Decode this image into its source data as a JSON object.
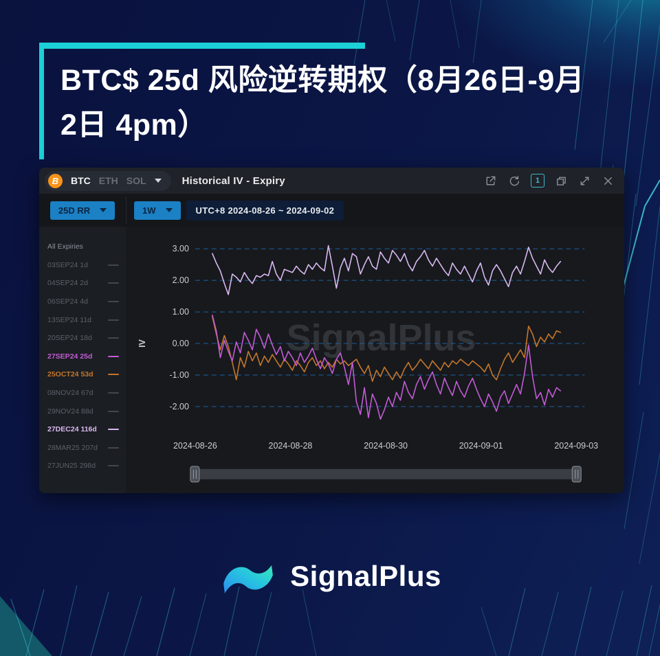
{
  "page": {
    "title": "BTC$ 25d 风险逆转期权（8月26日-9月2日 4pm）"
  },
  "widget": {
    "assets": {
      "btc": "BTC",
      "eth": "ETH",
      "sol": "SOL"
    },
    "title": "Historical IV - Expiry",
    "badge": "1",
    "watermark": "SignalPlus",
    "toolbar": {
      "metric": "25D RR",
      "period": "1W",
      "range": "UTC+8 2024-08-26 ~ 2024-09-02"
    },
    "sidebar": {
      "items": [
        {
          "label": "All Expiries",
          "state": "none"
        },
        {
          "label": "03SEP24 1d",
          "state": "inactive"
        },
        {
          "label": "04SEP24 2d",
          "state": "inactive"
        },
        {
          "label": "06SEP24 4d",
          "state": "inactive"
        },
        {
          "label": "13SEP24 11d",
          "state": "inactive"
        },
        {
          "label": "20SEP24 18d",
          "state": "inactive"
        },
        {
          "label": "27SEP24 25d",
          "state": "active",
          "color": "#c45ad6"
        },
        {
          "label": "25OCT24 53d",
          "state": "active",
          "color": "#c5772a"
        },
        {
          "label": "08NOV24 67d",
          "state": "inactive"
        },
        {
          "label": "29NOV24 88d",
          "state": "inactive"
        },
        {
          "label": "27DEC24 116d",
          "state": "active",
          "color": "#d9b8f0"
        },
        {
          "label": "28MAR25 207d",
          "state": "inactive"
        },
        {
          "label": "27JUN25 298d",
          "state": "inactive"
        }
      ]
    }
  },
  "chart_data": {
    "type": "line",
    "title": "Historical IV - Expiry",
    "ylabel": "IV",
    "grid": true,
    "legend_position": "sidebar-left",
    "ylim": [
      -2.9,
      3.5
    ],
    "yticks": [
      3,
      2,
      1,
      0,
      -1,
      -2
    ],
    "ytick_labels": [
      "3.00",
      "2.00",
      "1.00",
      "0.00",
      "-1.00",
      "-2.00"
    ],
    "x_axis": {
      "labels": [
        "2024-08-26",
        "2024-08-28",
        "2024-08-30",
        "2024-09-01",
        "2024-09-03"
      ],
      "day_positions": [
        0,
        2,
        4,
        6,
        8
      ],
      "range_days": [
        0,
        8
      ]
    },
    "series": [
      {
        "name": "27DEC24 116d",
        "color": "#d9b8f0",
        "x_start": 0.36,
        "x_end": 7.67,
        "values": [
          2.85,
          2.55,
          2.3,
          1.9,
          1.55,
          2.2,
          2.1,
          1.95,
          2.25,
          2.05,
          1.9,
          2.15,
          2.1,
          2.2,
          2.15,
          2.6,
          2.2,
          2.0,
          2.35,
          2.3,
          2.25,
          2.45,
          2.3,
          2.2,
          2.5,
          2.35,
          2.55,
          2.4,
          2.3,
          3.1,
          2.45,
          1.75,
          2.4,
          2.7,
          2.3,
          2.85,
          2.75,
          2.2,
          2.5,
          2.75,
          2.45,
          2.35,
          2.9,
          2.7,
          2.55,
          2.95,
          2.8,
          2.6,
          2.85,
          2.5,
          2.3,
          2.6,
          2.75,
          2.95,
          2.65,
          2.45,
          2.7,
          2.5,
          2.3,
          2.15,
          2.55,
          2.35,
          2.2,
          2.45,
          2.2,
          1.95,
          2.3,
          2.55,
          2.1,
          1.85,
          2.3,
          2.5,
          2.3,
          2.05,
          1.8,
          2.25,
          2.45,
          2.2,
          2.6,
          3.05,
          2.7,
          2.45,
          2.2,
          2.65,
          2.4,
          2.25,
          2.45,
          2.6
        ]
      },
      {
        "name": "25OCT24 53d",
        "color": "#c5772a",
        "x_start": 0.36,
        "x_end": 7.67,
        "values": [
          0.85,
          0.3,
          -0.2,
          0.25,
          -0.1,
          -0.6,
          -1.15,
          -0.45,
          -0.75,
          -0.25,
          -0.55,
          -0.3,
          -0.7,
          -0.4,
          -0.6,
          -0.35,
          -0.55,
          -0.75,
          -0.5,
          -0.65,
          -0.85,
          -0.55,
          -0.7,
          -0.9,
          -0.6,
          -0.45,
          -0.7,
          -0.55,
          -0.8,
          -0.6,
          -0.75,
          -0.5,
          -0.65,
          -0.55,
          -0.7,
          -0.6,
          -0.5,
          -0.75,
          -0.95,
          -0.7,
          -1.2,
          -0.85,
          -1.05,
          -0.75,
          -0.95,
          -1.15,
          -0.9,
          -1.1,
          -0.8,
          -0.6,
          -0.85,
          -0.7,
          -0.5,
          -0.65,
          -0.8,
          -0.55,
          -0.7,
          -0.85,
          -0.6,
          -0.75,
          -0.55,
          -0.65,
          -0.5,
          -0.6,
          -0.7,
          -0.55,
          -0.65,
          -0.75,
          -0.9,
          -0.65,
          -1.0,
          -1.15,
          -0.8,
          -0.5,
          -0.3,
          -0.6,
          -0.4,
          -0.2,
          -0.45,
          0.55,
          0.3,
          -0.1,
          0.2,
          0.05,
          0.3,
          0.15,
          0.4,
          0.35
        ]
      },
      {
        "name": "27SEP24 25d",
        "color": "#c45ad6",
        "x_start": 0.36,
        "x_end": 7.67,
        "values": [
          0.9,
          0.4,
          -0.45,
          0.1,
          -0.25,
          -0.55,
          0.05,
          -0.3,
          0.35,
          0.1,
          -0.2,
          0.45,
          0.2,
          -0.15,
          0.3,
          -0.05,
          -0.35,
          -0.1,
          -0.55,
          -0.25,
          -0.45,
          -0.7,
          -0.3,
          -0.6,
          -0.4,
          -0.15,
          -0.5,
          -0.8,
          -0.45,
          -0.65,
          -0.95,
          -0.5,
          -0.3,
          -0.75,
          -1.3,
          -0.6,
          -1.85,
          -2.25,
          -1.4,
          -2.35,
          -1.6,
          -1.9,
          -2.4,
          -2.1,
          -1.7,
          -2.0,
          -1.55,
          -1.8,
          -1.2,
          -1.55,
          -1.75,
          -1.3,
          -1.05,
          -1.45,
          -1.15,
          -0.9,
          -1.3,
          -1.6,
          -1.1,
          -1.4,
          -1.65,
          -1.2,
          -1.5,
          -1.7,
          -1.35,
          -1.1,
          -1.45,
          -1.75,
          -2.0,
          -1.6,
          -1.85,
          -2.15,
          -1.7,
          -1.5,
          -1.9,
          -1.6,
          -1.3,
          -1.6,
          -0.95,
          -0.05,
          -1.05,
          -1.75,
          -1.55,
          -1.95,
          -1.45,
          -1.7,
          -1.4,
          -1.5
        ]
      }
    ]
  },
  "footer": {
    "brand": "SignalPlus"
  }
}
